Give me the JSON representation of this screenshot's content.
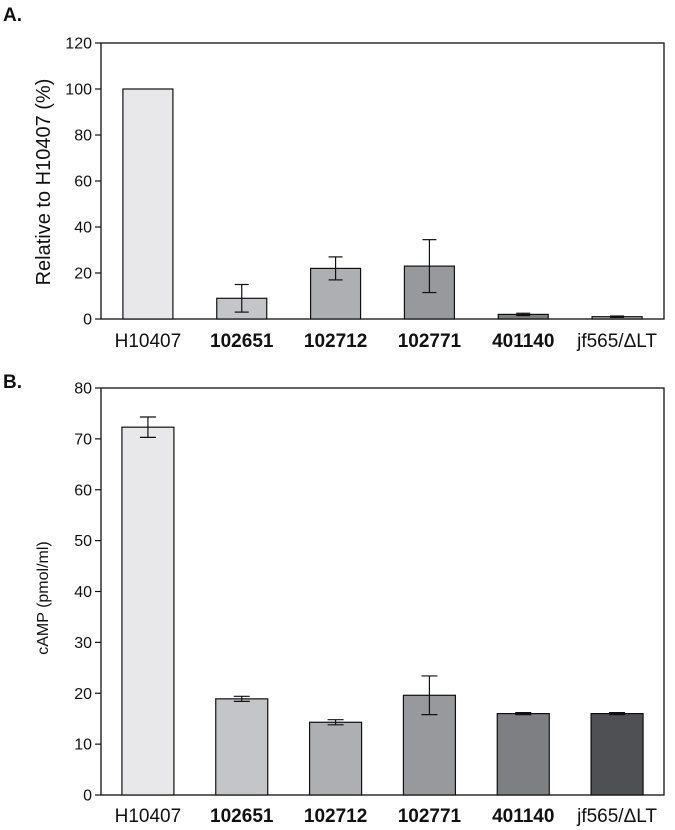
{
  "chart_data": [
    {
      "panel_label": "A.",
      "type": "bar",
      "categories": [
        "H10407",
        "102651",
        "102712",
        "102771",
        "401140",
        "jf565/ΔLT"
      ],
      "bold_categories": [
        false,
        true,
        true,
        true,
        true,
        false
      ],
      "values": [
        100,
        9,
        22,
        23,
        2,
        1
      ],
      "errors": [
        0,
        6,
        5,
        11.5,
        0.5,
        0.3
      ],
      "bar_colors": [
        "#e8e8ea",
        "#c4c5c8",
        "#aeafb2",
        "#98999c",
        "#7e7f82",
        "#b5b6b9"
      ],
      "ylabel": "Relative to H10407 (%)",
      "ylim": [
        0,
        120
      ],
      "yticks": [
        0,
        20,
        40,
        60,
        80,
        100,
        120
      ],
      "grid": false
    },
    {
      "panel_label": "B.",
      "type": "bar",
      "categories": [
        "H10407",
        "102651",
        "102712",
        "102771",
        "401140",
        "jf565/ΔLT"
      ],
      "bold_categories": [
        false,
        true,
        true,
        true,
        true,
        false
      ],
      "values": [
        72.3,
        18.9,
        14.3,
        19.6,
        16.0,
        16.0
      ],
      "errors": [
        2.0,
        0.5,
        0.5,
        3.8,
        0.2,
        0.2
      ],
      "bar_colors": [
        "#e8e8ea",
        "#c4c5c8",
        "#aeafb2",
        "#98999c",
        "#7e7f82",
        "#4f5053"
      ],
      "ylabel": "cAMP (pmol/ml)",
      "ylim": [
        0,
        80
      ],
      "yticks": [
        0,
        10,
        20,
        30,
        40,
        50,
        60,
        70,
        80
      ],
      "grid": false
    }
  ]
}
